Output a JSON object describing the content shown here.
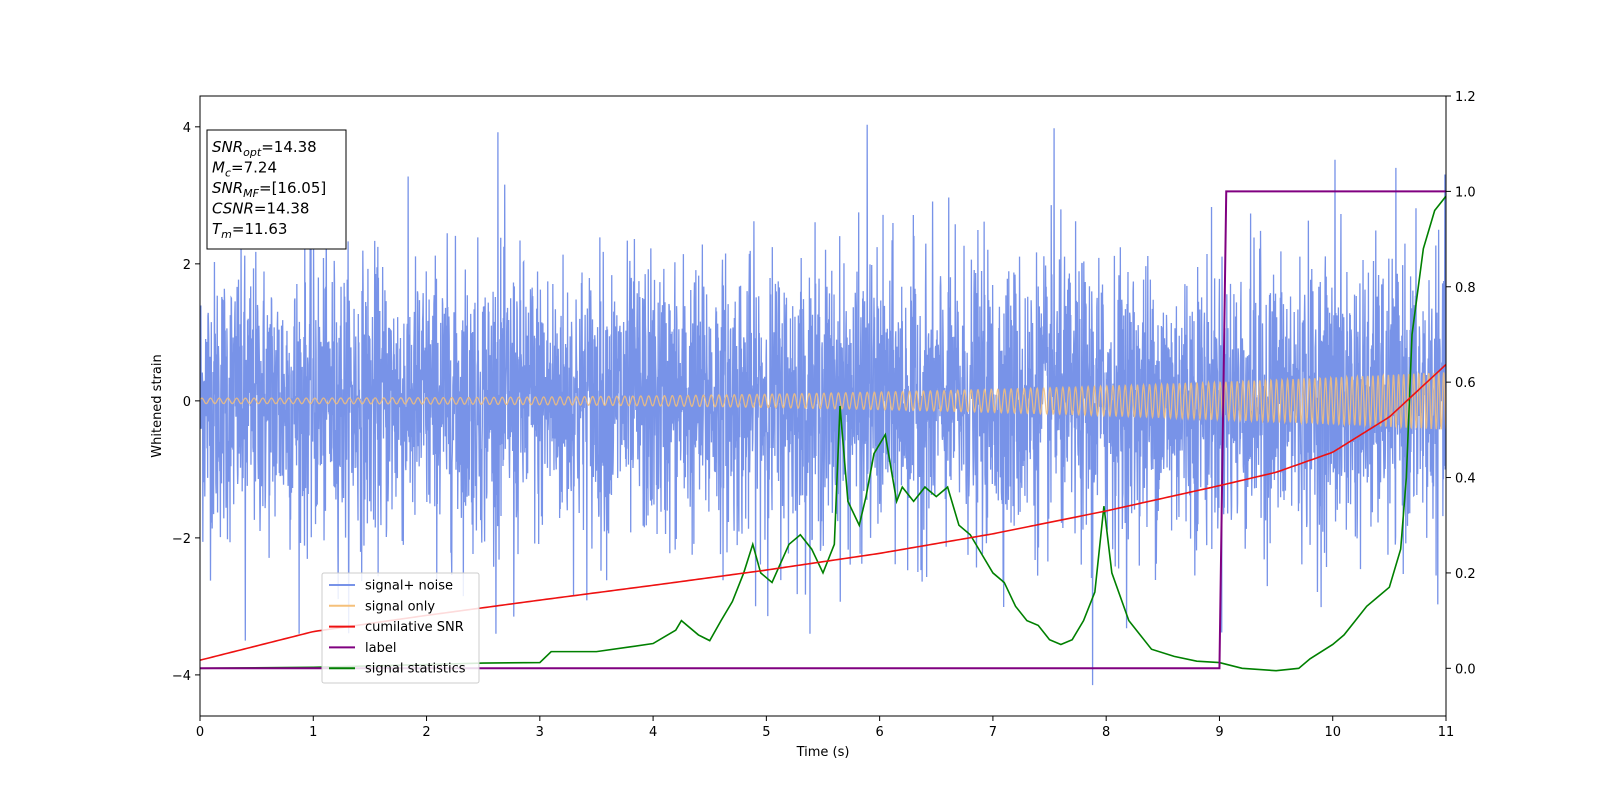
{
  "chart_data": {
    "type": "line",
    "xlabel": "Time (s)",
    "ylabel": "Whitened strain",
    "xlim": [
      0,
      11
    ],
    "ylim": [
      -4.6,
      4.45
    ],
    "y2lim": [
      -0.1,
      1.2
    ],
    "x_ticks": [
      "0",
      "1",
      "2",
      "3",
      "4",
      "5",
      "6",
      "7",
      "8",
      "9",
      "10",
      "11"
    ],
    "y_ticks": [
      "−4",
      "−2",
      "0",
      "2",
      "4"
    ],
    "y2_ticks": [
      "0.0",
      "0.2",
      "0.4",
      "0.6",
      "0.8",
      "1.0",
      "1.2"
    ],
    "grid": false,
    "legend_position": "lower-left",
    "annotation": {
      "lines": [
        {
          "sym": "SNR",
          "sub": "opt",
          "val": "=14.38"
        },
        {
          "sym": "M",
          "sub": "c",
          "val": "=7.24"
        },
        {
          "sym": "SNR",
          "sub": "MF",
          "val": "=[16.05]"
        },
        {
          "sym": "CSNR",
          "sub": "",
          "val": "=14.38"
        },
        {
          "sym": "T",
          "sub": "m",
          "val": "=11.63"
        }
      ]
    },
    "series": [
      {
        "name": "signal+ noise",
        "color": "#7893e8",
        "axis": "left",
        "kind": "noise",
        "std": 1.0,
        "x_range": [
          0,
          11
        ],
        "notable_peaks": [
          {
            "x": 0.4,
            "y": -3.5
          },
          {
            "x": 2.63,
            "y": 3.92
          },
          {
            "x": 2.77,
            "y": -3.15
          },
          {
            "x": 5.89,
            "y": 4.03
          },
          {
            "x": 7.54,
            "y": 3.98
          },
          {
            "x": 7.88,
            "y": -4.15
          },
          {
            "x": 10.02,
            "y": 3.52
          }
        ]
      },
      {
        "name": "signal only",
        "color": "#f5c07a",
        "axis": "left",
        "kind": "chirp",
        "amplitude_start": 0.04,
        "amplitude_end": 0.42,
        "x_range": [
          0,
          11
        ]
      },
      {
        "name": "cumilative SNR",
        "color": "#ee1111",
        "axis": "right",
        "x": [
          0,
          1,
          2,
          3,
          4,
          5,
          6,
          7,
          8,
          9,
          9.5,
          10,
          10.5,
          11
        ],
        "values": [
          0.017,
          0.077,
          0.111,
          0.143,
          0.174,
          0.206,
          0.241,
          0.282,
          0.33,
          0.383,
          0.411,
          0.453,
          0.527,
          0.637
        ]
      },
      {
        "name": "label",
        "color": "#800080",
        "axis": "right",
        "x": [
          0,
          9.0,
          9.06,
          11
        ],
        "values": [
          0.0,
          0.0,
          1.0,
          1.0
        ]
      },
      {
        "name": "signal statistics",
        "color": "#008000",
        "axis": "right",
        "x": [
          0,
          1,
          2,
          2.5,
          3,
          3.1,
          3.5,
          3.8,
          4.0,
          4.2,
          4.25,
          4.4,
          4.5,
          4.6,
          4.7,
          4.8,
          4.88,
          4.95,
          5.05,
          5.2,
          5.3,
          5.4,
          5.5,
          5.6,
          5.65,
          5.72,
          5.82,
          5.88,
          5.95,
          6.05,
          6.15,
          6.2,
          6.3,
          6.4,
          6.5,
          6.6,
          6.7,
          6.8,
          6.9,
          7.0,
          7.1,
          7.2,
          7.3,
          7.4,
          7.5,
          7.6,
          7.7,
          7.8,
          7.9,
          7.98,
          8.05,
          8.2,
          8.4,
          8.6,
          8.8,
          9.0,
          9.2,
          9.5,
          9.7,
          9.8,
          10.0,
          10.1,
          10.2,
          10.3,
          10.4,
          10.5,
          10.6,
          10.65,
          10.7,
          10.8,
          10.9,
          11.0
        ],
        "values": [
          0.0,
          0.002,
          0.008,
          0.011,
          0.012,
          0.035,
          0.035,
          0.045,
          0.052,
          0.08,
          0.1,
          0.07,
          0.058,
          0.1,
          0.14,
          0.2,
          0.26,
          0.2,
          0.18,
          0.26,
          0.28,
          0.25,
          0.2,
          0.26,
          0.55,
          0.35,
          0.3,
          0.36,
          0.45,
          0.49,
          0.35,
          0.38,
          0.35,
          0.38,
          0.36,
          0.38,
          0.3,
          0.28,
          0.24,
          0.2,
          0.18,
          0.13,
          0.1,
          0.09,
          0.06,
          0.05,
          0.06,
          0.1,
          0.16,
          0.34,
          0.2,
          0.1,
          0.04,
          0.025,
          0.015,
          0.012,
          0.0,
          -0.005,
          0.0,
          0.02,
          0.05,
          0.07,
          0.1,
          0.13,
          0.15,
          0.17,
          0.25,
          0.4,
          0.7,
          0.88,
          0.96,
          0.99
        ]
      }
    ]
  }
}
